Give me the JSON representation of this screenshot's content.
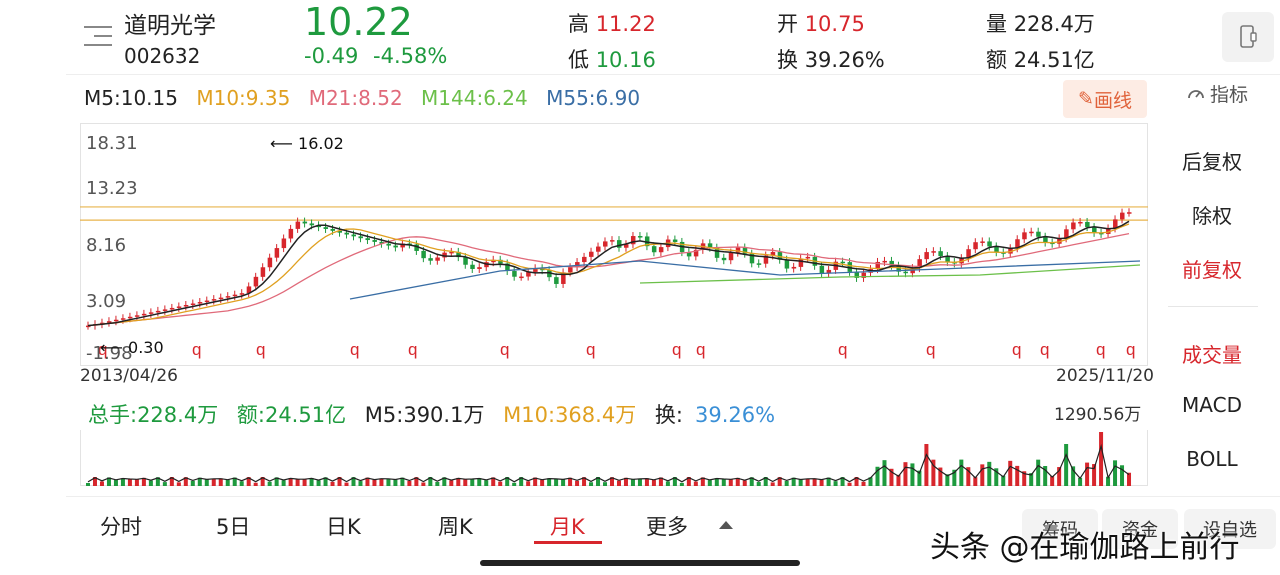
{
  "header": {
    "name": "道明光学",
    "code": "002632",
    "price": "10.22",
    "change": "-0.49",
    "change_pct": "-4.58%",
    "high_label": "高",
    "high": "11.22",
    "low_label": "低",
    "low": "10.16",
    "open_label": "开",
    "open": "10.75",
    "turnover_label": "换",
    "turnover": "39.26%",
    "volume_label": "量",
    "volume": "228.4万",
    "amount_label": "额",
    "amount": "24.51亿"
  },
  "ma": {
    "m5": "M5:10.15",
    "m10": "M10:9.35",
    "m21": "M21:8.52",
    "m144": "M144:6.24",
    "m55": "M55:6.90"
  },
  "toolbar": {
    "draw_label": "画线",
    "indicator_label": "指标"
  },
  "chart": {
    "y_labels": [
      "18.31",
      "13.23",
      "8.16",
      "3.09",
      "-1.98"
    ],
    "date_start": "2013/04/26",
    "date_end": "2025/11/20",
    "max_annotation": "16.02",
    "min_annotation": "0.30"
  },
  "side_panel": {
    "items": [
      "后复权",
      "除权",
      "前复权",
      "成交量",
      "MACD",
      "BOLL"
    ]
  },
  "volume": {
    "total": "总手:228.4万",
    "amount": "额:24.51亿",
    "m5": "M5:390.1万",
    "m10": "M10:368.4万",
    "turnover_label": "换:",
    "turnover": "39.26%",
    "max_label": "1290.56万"
  },
  "tabs": {
    "items": [
      "分时",
      "5日",
      "日K",
      "周K",
      "月K",
      "更多"
    ],
    "active": "月K"
  },
  "bottom_buttons": [
    "筹码",
    "资金",
    "设自选"
  ],
  "watermark": "头条 @在瑜伽路上前行",
  "colors": {
    "up": "#d7262c",
    "down": "#1e9a3e",
    "m5": "#222222",
    "m10": "#e0a020",
    "m21": "#e06a7a",
    "m144": "#6cc04a",
    "m55": "#3a6ea5"
  }
}
